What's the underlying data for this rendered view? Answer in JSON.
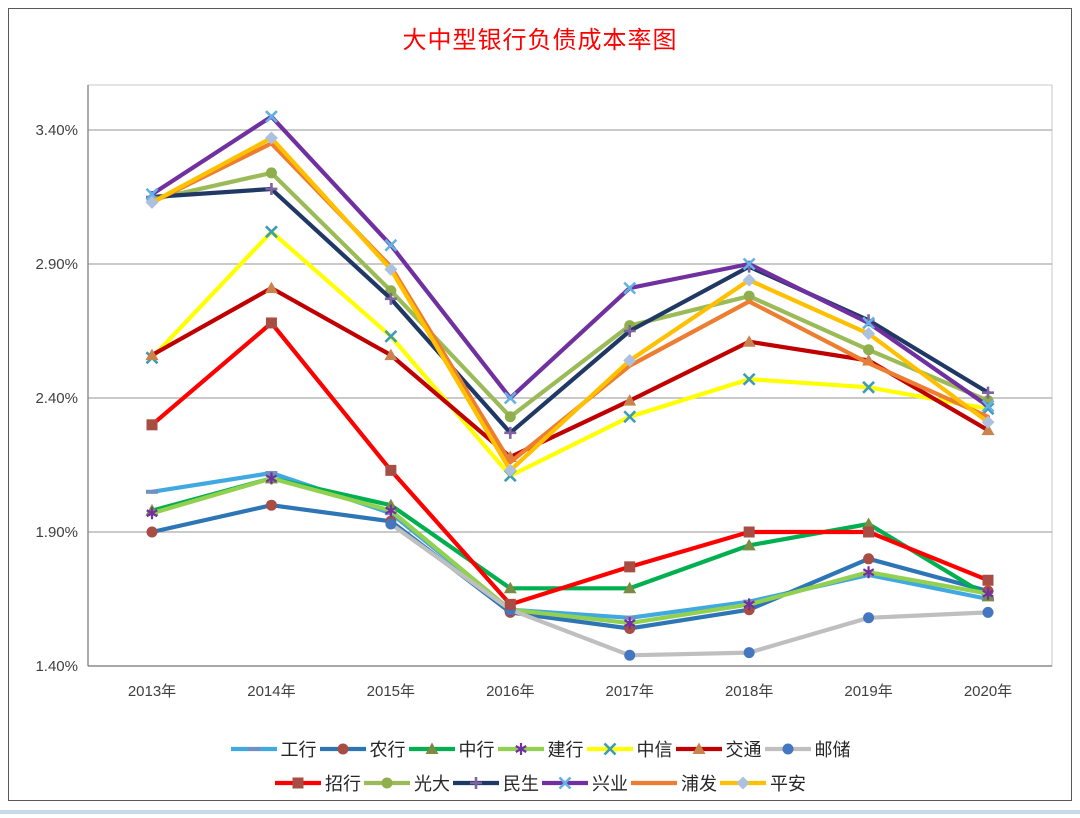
{
  "chart_data": {
    "type": "line",
    "title": "大中型银行负债成本率图",
    "title_color": "#FF0000",
    "categories": [
      "2013年",
      "2014年",
      "2015年",
      "2016年",
      "2017年",
      "2018年",
      "2019年",
      "2020年"
    ],
    "y_tick_labels": [
      "3.40%",
      "2.90%",
      "2.40%",
      "1.90%",
      "1.40%"
    ],
    "y_tick_values": [
      3.4,
      2.9,
      2.4,
      1.9,
      1.4
    ],
    "ylim": [
      1.4,
      3.57
    ],
    "unit": "%",
    "grid": "horizontal",
    "legend_position": "bottom",
    "series": [
      {
        "name": "工行",
        "color": "#3FA9E0",
        "marker": "dash",
        "marker_color": "#748EC4",
        "values": [
          2.05,
          2.12,
          1.97,
          1.61,
          1.58,
          1.64,
          1.74,
          1.65
        ]
      },
      {
        "name": "农行",
        "color": "#2E75B6",
        "marker": "circle",
        "marker_color": "#A84D44",
        "values": [
          1.9,
          2.0,
          1.94,
          1.6,
          1.54,
          1.61,
          1.8,
          1.68
        ]
      },
      {
        "name": "中行",
        "color": "#00B050",
        "marker": "triangle",
        "marker_color": "#7A8B43",
        "values": [
          1.98,
          2.1,
          2.0,
          1.69,
          1.69,
          1.85,
          1.93,
          1.66
        ]
      },
      {
        "name": "建行",
        "color": "#92D050",
        "marker": "asterisk",
        "marker_color": "#7030A0",
        "values": [
          1.97,
          2.1,
          1.98,
          1.61,
          1.56,
          1.63,
          1.75,
          1.67
        ]
      },
      {
        "name": "中信",
        "color": "#FFFF00",
        "marker": "x",
        "marker_color": "#3C9BB5",
        "values": [
          2.55,
          3.02,
          2.63,
          2.11,
          2.33,
          2.47,
          2.44,
          2.36
        ]
      },
      {
        "name": "交通",
        "color": "#C00000",
        "marker": "triangle",
        "marker_color": "#C9834E",
        "values": [
          2.56,
          2.81,
          2.56,
          2.18,
          2.39,
          2.61,
          2.54,
          2.28
        ]
      },
      {
        "name": "邮储",
        "color": "#BFBFBF",
        "marker": "circle",
        "marker_color": "#4477C0",
        "values": [
          null,
          null,
          1.93,
          1.61,
          1.44,
          1.45,
          1.58,
          1.6
        ]
      },
      {
        "name": "招行",
        "color": "#FF0000",
        "marker": "square",
        "marker_color": "#A84D44",
        "values": [
          2.3,
          2.68,
          2.13,
          1.63,
          1.77,
          1.9,
          1.9,
          1.72
        ]
      },
      {
        "name": "光大",
        "color": "#9BBB59",
        "marker": "circle",
        "marker_color": "#8FAF4C",
        "values": [
          3.14,
          3.24,
          2.8,
          2.33,
          2.67,
          2.78,
          2.58,
          2.39
        ]
      },
      {
        "name": "民生",
        "color": "#1F3864",
        "marker": "plus",
        "marker_color": "#8064A2",
        "values": [
          3.15,
          3.18,
          2.77,
          2.27,
          2.65,
          2.89,
          2.69,
          2.42
        ]
      },
      {
        "name": "兴业",
        "color": "#7030A0",
        "marker": "x",
        "marker_color": "#63B1E5",
        "values": [
          3.16,
          3.45,
          2.97,
          2.4,
          2.81,
          2.9,
          2.68,
          2.37
        ]
      },
      {
        "name": "浦发",
        "color": "#ED7D31",
        "marker": "none",
        "marker_color": "#ED7D31",
        "values": [
          3.13,
          3.35,
          2.89,
          2.16,
          2.52,
          2.76,
          2.53,
          2.33
        ]
      },
      {
        "name": "平安",
        "color": "#FFC000",
        "marker": "diamond",
        "marker_color": "#ADC0DE",
        "values": [
          3.13,
          3.37,
          2.88,
          2.13,
          2.54,
          2.84,
          2.64,
          2.31
        ]
      }
    ],
    "legend_rows": [
      [
        "工行",
        "农行",
        "中行",
        "建行",
        "中信",
        "交通",
        "邮储"
      ],
      [
        "招行",
        "光大",
        "民生",
        "兴业",
        "浦发",
        "平安"
      ]
    ]
  },
  "colors": {
    "gridline": "#ABABAB",
    "axis": "#808080",
    "plot_border": "#C9C9C9",
    "figure_border": "#595959",
    "bottom_strip": "#C7D9E6"
  }
}
